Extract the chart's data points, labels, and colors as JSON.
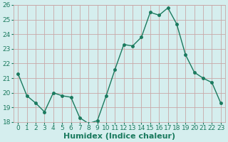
{
  "x": [
    0,
    1,
    2,
    3,
    4,
    5,
    6,
    7,
    8,
    9,
    10,
    11,
    12,
    13,
    14,
    15,
    16,
    17,
    18,
    19,
    20,
    21,
    22,
    23
  ],
  "y": [
    21.3,
    19.8,
    19.3,
    18.7,
    20.0,
    19.8,
    19.7,
    18.3,
    17.9,
    18.1,
    19.8,
    21.6,
    23.3,
    23.2,
    23.8,
    25.5,
    25.3,
    25.8,
    24.7,
    22.6,
    21.4,
    21.0,
    20.7,
    19.3
  ],
  "line_color": "#1a7a5e",
  "marker_color": "#1a7a5e",
  "bg_color": "#d5eeee",
  "grid_color": "#c8a8a8",
  "axis_color": "#1a7a5e",
  "xlabel": "Humidex (Indice chaleur)",
  "ylim": [
    18,
    26
  ],
  "xlim": [
    -0.5,
    23.5
  ],
  "yticks": [
    18,
    19,
    20,
    21,
    22,
    23,
    24,
    25,
    26
  ],
  "xticks": [
    0,
    1,
    2,
    3,
    4,
    5,
    6,
    7,
    8,
    9,
    10,
    11,
    12,
    13,
    14,
    15,
    16,
    17,
    18,
    19,
    20,
    21,
    22,
    23
  ],
  "tick_label_fontsize": 6.5,
  "xlabel_fontsize": 8,
  "marker_size": 2.5,
  "line_width": 1.0
}
